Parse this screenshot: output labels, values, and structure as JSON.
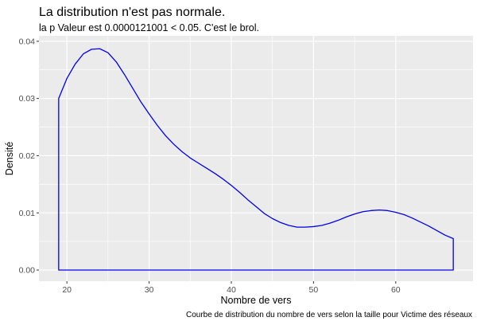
{
  "chart_data": {
    "type": "area",
    "title": "La distribution n'est pas normale.",
    "subtitle": "la p Valeur est  0.0000121001  < 0.05. C'est le brol.",
    "xlabel": "Nombre de vers",
    "ylabel": "Densité",
    "caption": "Courbe de distribution du nombre de vers selon la taille pour  Victime des réseaux",
    "xlim": [
      16.6,
      69.4
    ],
    "ylim": [
      -0.00195,
      0.04095
    ],
    "x_ticks": [
      20,
      30,
      40,
      50,
      60
    ],
    "y_ticks": [
      0.0,
      0.01,
      0.02,
      0.03,
      0.04
    ],
    "y_tick_labels": [
      "0.00",
      "0.01",
      "0.02",
      "0.03",
      "0.04"
    ],
    "grid": true,
    "colors": {
      "line": "#0000ee",
      "panel": "#ebebeb",
      "grid": "#ffffff"
    },
    "series": [
      {
        "x": [
          19,
          20,
          21,
          22,
          23,
          24,
          25,
          26,
          27,
          28,
          29,
          30,
          31,
          32,
          33,
          34,
          35,
          36,
          37,
          38,
          39,
          40,
          41,
          42,
          43,
          44,
          45,
          46,
          47,
          48,
          49,
          50,
          51,
          52,
          53,
          54,
          55,
          56,
          57,
          58,
          59,
          60,
          61,
          62,
          63,
          64,
          65,
          66,
          67
        ],
        "y": [
          0.03,
          0.0335,
          0.036,
          0.0378,
          0.0386,
          0.0387,
          0.038,
          0.0364,
          0.0342,
          0.0318,
          0.0294,
          0.0273,
          0.0253,
          0.0235,
          0.022,
          0.0207,
          0.0196,
          0.0187,
          0.0178,
          0.0169,
          0.0159,
          0.0148,
          0.0136,
          0.0123,
          0.0111,
          0.0099,
          0.009,
          0.0083,
          0.0078,
          0.0075,
          0.0075,
          0.0076,
          0.0078,
          0.0082,
          0.0087,
          0.0093,
          0.0098,
          0.0102,
          0.0104,
          0.0105,
          0.0104,
          0.0101,
          0.0097,
          0.0091,
          0.0084,
          0.0077,
          0.0069,
          0.0061,
          0.0055
        ]
      }
    ]
  }
}
